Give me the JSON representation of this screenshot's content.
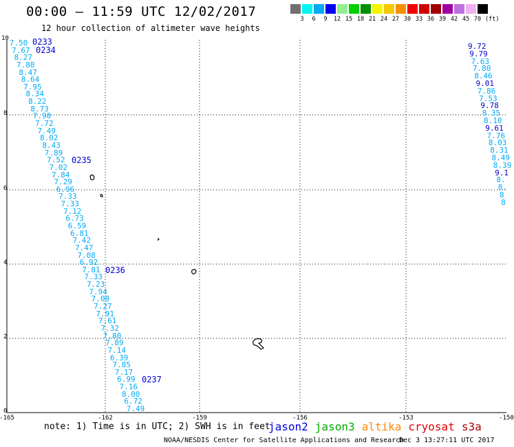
{
  "header": {
    "title": "00:00 — 11:59 UTC 12/02/2017",
    "subtitle": "12 hour collection of altimeter wave heights"
  },
  "colorbar": {
    "colors": [
      "#707070",
      "#00f5f5",
      "#00aaf5",
      "#0000f0",
      "#90f090",
      "#00d000",
      "#009000",
      "#f5f500",
      "#f5c800",
      "#f59000",
      "#f50000",
      "#d00000",
      "#a00000",
      "#a000a0",
      "#c070e0",
      "#f0b0f0",
      "#000000"
    ],
    "labels": [
      "3",
      "6",
      "9",
      "12",
      "15",
      "18",
      "21",
      "24",
      "27",
      "30",
      "33",
      "36",
      "39",
      "42",
      "45",
      "70"
    ],
    "unit": "(ft)"
  },
  "axes": {
    "x_ticks": [
      "-165",
      "-162",
      "-159",
      "-156",
      "-153",
      "-150"
    ],
    "y_ticks": [
      "0",
      "2",
      "4",
      "6",
      "8",
      "10"
    ]
  },
  "track_left": [
    "7.50",
    "7.67",
    "8.27",
    "7.80",
    "8.47",
    "8.64",
    "7.95",
    "8.34",
    "8.22",
    "8.73",
    "7.90",
    "7.72",
    "7.49",
    "8.02",
    "8.43",
    "7.89",
    "7.52",
    "7.02",
    "7.84",
    "7.29",
    "6.96",
    "7.33",
    "7.33",
    "7.12",
    "6.73",
    "6.59",
    "6.81",
    "7.42",
    "7.47",
    "7.08",
    "6.92",
    "7.81",
    "7.33",
    "7.23",
    "7.94",
    "7.08",
    "7.27",
    "7.91",
    "7.61",
    "7.32",
    "7.80",
    "7.89",
    "7.14",
    "6.39",
    "7.85",
    "7.17",
    "6.99",
    "7.16",
    "8.00",
    "6.72",
    "7.49"
  ],
  "track_left_colors": [
    "#00aaf5",
    "#00aaf5",
    "#00aaf5",
    "#00aaf5",
    "#00aaf5",
    "#00aaf5",
    "#00aaf5",
    "#00aaf5",
    "#00aaf5",
    "#00aaf5",
    "#00aaf5",
    "#00aaf5",
    "#00aaf5",
    "#00aaf5",
    "#00aaf5",
    "#00aaf5",
    "#00aaf5",
    "#00aaf5",
    "#00aaf5",
    "#00aaf5",
    "#00aaf5",
    "#00aaf5",
    "#00aaf5",
    "#00aaf5",
    "#00aaf5",
    "#00aaf5",
    "#00aaf5",
    "#00aaf5",
    "#00aaf5",
    "#00aaf5",
    "#00aaf5",
    "#00aaf5",
    "#00aaf5",
    "#00aaf5",
    "#00aaf5",
    "#00aaf5",
    "#00aaf5",
    "#00aaf5",
    "#00aaf5",
    "#00aaf5",
    "#00aaf5",
    "#00aaf5",
    "#00aaf5",
    "#00aaf5",
    "#00aaf5",
    "#00aaf5",
    "#00aaf5",
    "#00aaf5",
    "#00aaf5",
    "#00aaf5",
    "#00aaf5"
  ],
  "pass_times": [
    "0233",
    "0234",
    "0235",
    "0236",
    "0237"
  ],
  "track_right": [
    "9.72",
    "9.79",
    "7.63",
    "7.80",
    "8.46",
    "9.01",
    "7.86",
    "7.53",
    "9.78",
    "8.35",
    "8.10",
    "9.61",
    "7.76",
    "8.03",
    "8.31",
    "8.49",
    "8.39",
    "9.1",
    "8.",
    "8.",
    "8",
    "8"
  ],
  "track_right_colors": [
    "#0000cc",
    "#0000cc",
    "#00aaf5",
    "#00aaf5",
    "#00aaf5",
    "#0000cc",
    "#00aaf5",
    "#00aaf5",
    "#0000cc",
    "#00aaf5",
    "#00aaf5",
    "#0000cc",
    "#00aaf5",
    "#00aaf5",
    "#00aaf5",
    "#00aaf5",
    "#00aaf5",
    "#0000cc",
    "#00aaf5",
    "#00aaf5",
    "#00aaf5",
    "#00aaf5"
  ],
  "footer": {
    "note": "note: 1) Time is in UTC; 2) SWH is in feet",
    "legend": [
      {
        "name": "jason2",
        "color": "#0000dd"
      },
      {
        "name": "jason3",
        "color": "#00aa00"
      },
      {
        "name": "altika",
        "color": "#ff8800"
      },
      {
        "name": "cryosat",
        "color": "#dd0000"
      },
      {
        "name": "s3a",
        "color": "#aa0000"
      }
    ],
    "credit": "NOAA/NESDIS Center for Satellite Applications and Research",
    "timestamp": "Dec  3 13:27:11 UTC 2017"
  }
}
